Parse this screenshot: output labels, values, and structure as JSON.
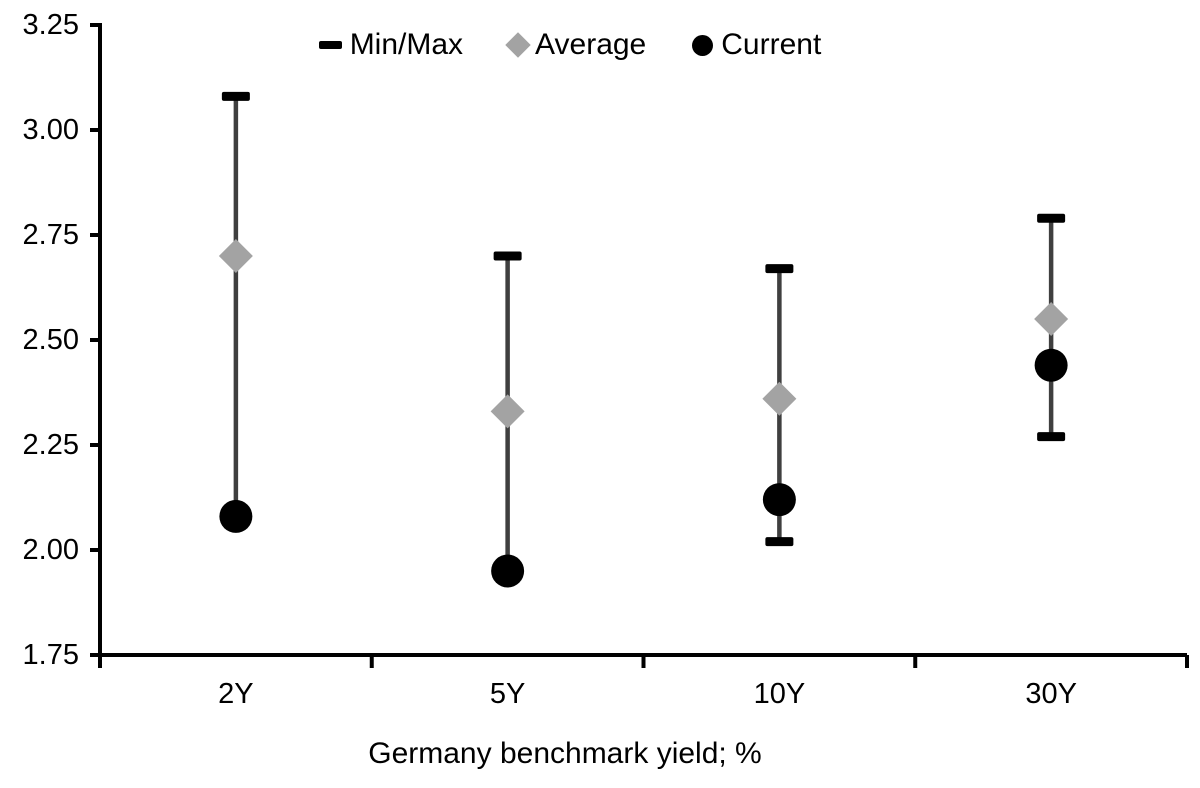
{
  "chart_data": {
    "type": "scatter",
    "subtype": "min-max-range-markers",
    "title": "",
    "xlabel": "Germany benchmark yield; %",
    "ylabel": "",
    "categories": [
      "2Y",
      "5Y",
      "10Y",
      "30Y"
    ],
    "series": [
      {
        "name": "Min/Max",
        "marker": "dash",
        "color": "#000000",
        "max": [
          3.08,
          2.7,
          2.67,
          2.79
        ],
        "min": [
          2.08,
          1.95,
          2.02,
          2.27
        ],
        "min_cap_visible": [
          false,
          false,
          true,
          true
        ]
      },
      {
        "name": "Average",
        "marker": "diamond",
        "color": "#a3a3a3",
        "values": [
          2.7,
          2.33,
          2.36,
          2.55
        ]
      },
      {
        "name": "Current",
        "marker": "circle",
        "color": "#000000",
        "values": [
          2.08,
          1.95,
          2.12,
          2.44
        ]
      }
    ],
    "ylim": [
      1.75,
      3.25
    ],
    "ytick_step": 0.25,
    "ytick_labels": [
      "3.25",
      "3.00",
      "2.75",
      "2.50",
      "2.25",
      "2.00",
      "1.75"
    ],
    "grid": false,
    "legend_position": "top-center",
    "range_line_color": "#3f3f3f",
    "axis_color": "#000000"
  }
}
